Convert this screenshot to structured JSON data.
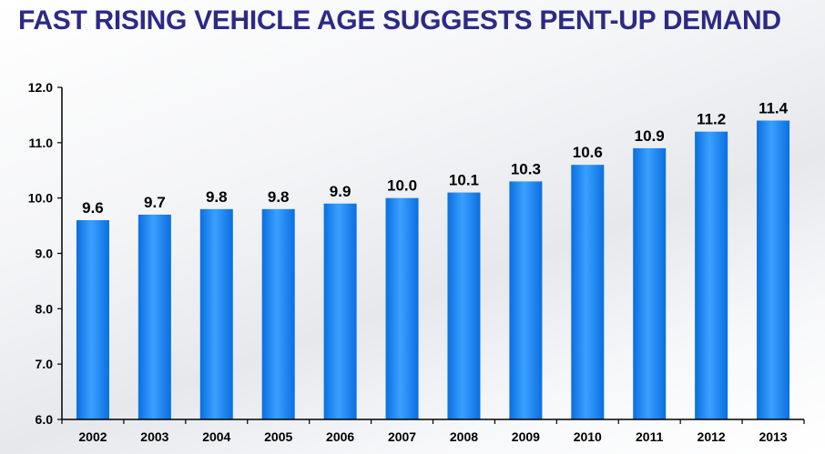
{
  "colors": {
    "title": "#2d2a86",
    "bar_top": "#3aa0ff",
    "bar_bottom": "#0a6fe0",
    "axis": "#000000",
    "text": "#000000"
  },
  "chart_data": {
    "type": "bar",
    "title": "FAST RISING VEHICLE AGE SUGGESTS PENT-UP DEMAND",
    "xlabel": "",
    "ylabel": "",
    "categories": [
      "2002",
      "2003",
      "2004",
      "2005",
      "2006",
      "2007",
      "2008",
      "2009",
      "2010",
      "2011",
      "2012",
      "2013"
    ],
    "values": [
      9.6,
      9.7,
      9.8,
      9.8,
      9.9,
      10.0,
      10.1,
      10.3,
      10.6,
      10.9,
      11.2,
      11.4
    ],
    "value_labels": [
      "9.6",
      "9.7",
      "9.8",
      "9.8",
      "9.9",
      "10.0",
      "10.1",
      "10.3",
      "10.6",
      "10.9",
      "11.2",
      "11.4"
    ],
    "ylim": [
      6.0,
      12.0
    ],
    "yticks": [
      6.0,
      7.0,
      8.0,
      9.0,
      10.0,
      11.0,
      12.0
    ],
    "ytick_labels": [
      "6.0",
      "7.0",
      "8.0",
      "9.0",
      "10.0",
      "11.0",
      "12.0"
    ],
    "grid": false,
    "legend": "none"
  }
}
